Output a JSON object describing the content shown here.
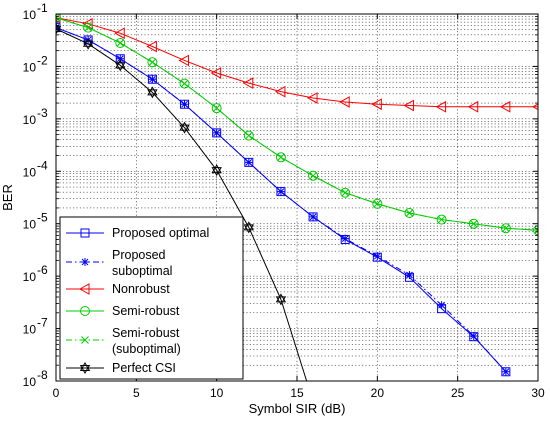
{
  "chart_data": {
    "type": "line",
    "xlabel": "Symbol SIR (dB)",
    "ylabel": "BER",
    "xlim": [
      0,
      30
    ],
    "ylim": [
      1e-08,
      0.1
    ],
    "y_scale": "log",
    "grid": true,
    "legend_position": "bottom-left",
    "x_ticks": [
      0,
      5,
      10,
      15,
      20,
      25,
      30
    ],
    "x_tick_labels": [
      "0",
      "5",
      "10",
      "15",
      "20",
      "25",
      "30"
    ],
    "y_ticks": [
      1e-08,
      1e-07,
      1e-06,
      1e-05,
      0.0001,
      0.001,
      0.01,
      0.1
    ],
    "y_tick_labels": [
      {
        "base": "10",
        "exp": "-8"
      },
      {
        "base": "10",
        "exp": "-7"
      },
      {
        "base": "10",
        "exp": "-6"
      },
      {
        "base": "10",
        "exp": "-5"
      },
      {
        "base": "10",
        "exp": "-4"
      },
      {
        "base": "10",
        "exp": "-3"
      },
      {
        "base": "10",
        "exp": "-2"
      },
      {
        "base": "10",
        "exp": "-1"
      }
    ],
    "series": [
      {
        "name": "Proposed optimal",
        "color": "#0000ff",
        "marker": "square",
        "dash": "solid",
        "x": [
          0,
          2,
          4,
          6,
          8,
          10,
          12,
          14,
          16,
          18,
          20,
          22,
          24,
          26,
          28
        ],
        "y": [
          0.055,
          0.032,
          0.014,
          0.0057,
          0.0019,
          0.00054,
          0.000148,
          4.1e-05,
          1.35e-05,
          5e-06,
          2.3e-06,
          9.5e-07,
          2.4e-07,
          7e-08,
          1.5e-08
        ]
      },
      {
        "name": "Proposed\nsuboptimal",
        "color": "#0000ff",
        "marker": "star",
        "dash": "dashdot",
        "x": [
          0,
          2,
          4,
          6,
          8,
          10,
          12,
          14,
          16,
          18,
          20,
          22,
          24,
          26,
          28
        ],
        "y": [
          0.055,
          0.032,
          0.014,
          0.0057,
          0.0019,
          0.00054,
          0.000148,
          4.1e-05,
          1.35e-05,
          5.2e-06,
          2.4e-06,
          1.05e-06,
          2.8e-07,
          7.2e-08,
          1.5e-08
        ]
      },
      {
        "name": "Nonrobust",
        "color": "#ff0000",
        "marker": "triangle-left",
        "dash": "solid",
        "x": [
          0,
          2,
          4,
          6,
          8,
          10,
          12,
          14,
          16,
          18,
          20,
          22,
          24,
          26,
          28,
          30
        ],
        "y": [
          0.085,
          0.065,
          0.043,
          0.024,
          0.013,
          0.0075,
          0.0048,
          0.0033,
          0.0025,
          0.0021,
          0.0019,
          0.0018,
          0.0017,
          0.0017,
          0.0017,
          0.0017
        ]
      },
      {
        "name": "Semi-robust",
        "color": "#00cc00",
        "marker": "circle",
        "dash": "solid",
        "x": [
          0,
          2,
          4,
          6,
          8,
          10,
          12,
          14,
          16,
          18,
          20,
          22,
          24,
          26,
          28,
          30
        ],
        "y": [
          0.085,
          0.055,
          0.028,
          0.012,
          0.0047,
          0.0016,
          0.00048,
          0.000185,
          8.2e-05,
          3.9e-05,
          2.4e-05,
          1.6e-05,
          1.2e-05,
          1e-05,
          8.2e-06,
          7.5e-06
        ]
      },
      {
        "name": "Semi-robust\n(suboptimal)",
        "color": "#00cc00",
        "marker": "x",
        "dash": "dashdot",
        "x": [
          0,
          2,
          4,
          6,
          8,
          10,
          12,
          14,
          16,
          18,
          20,
          22,
          24,
          26,
          28,
          30
        ],
        "y": [
          0.085,
          0.055,
          0.028,
          0.012,
          0.0047,
          0.0016,
          0.00048,
          0.000185,
          8.2e-05,
          3.9e-05,
          2.4e-05,
          1.6e-05,
          1.2e-05,
          1e-05,
          8.2e-06,
          7.5e-06
        ]
      },
      {
        "name": "Perfect CSI",
        "color": "#000000",
        "marker": "hexagram",
        "dash": "solid",
        "x": [
          0,
          2,
          4,
          6,
          8,
          10,
          12,
          14,
          15.6
        ],
        "y": [
          0.052,
          0.027,
          0.0105,
          0.0032,
          0.00068,
          0.000105,
          8.5e-06,
          3.6e-07,
          1e-08
        ],
        "marker_count": 8
      }
    ]
  }
}
